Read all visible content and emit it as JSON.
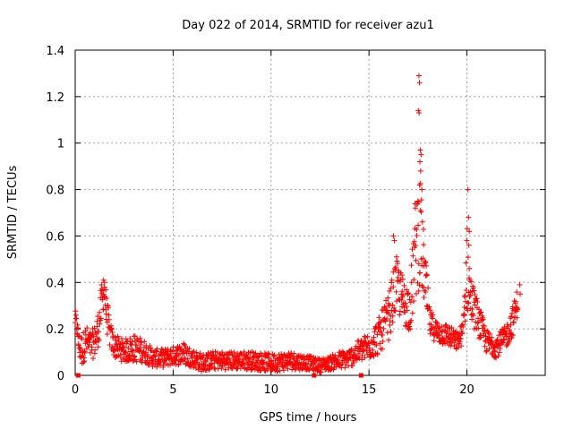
{
  "chart_data": {
    "type": "scatter",
    "title": "Day 022 of 2014, SRMTID for receiver azu1",
    "xlabel": "GPS time / hours",
    "ylabel": "SRMTID / TECUs",
    "xlim": [
      0,
      24
    ],
    "ylim": [
      0,
      1.4
    ],
    "xticks": [
      0,
      5,
      10,
      15,
      20
    ],
    "yticks": [
      0,
      0.2,
      0.4,
      0.6,
      0.8,
      1.0,
      1.2,
      1.4
    ],
    "xtick_labels": [
      "0",
      "5",
      "10",
      "15",
      "20"
    ],
    "ytick_labels": [
      "0",
      "0.2",
      "0.4",
      "0.6",
      "0.8",
      "1",
      "1.2",
      "1.4"
    ],
    "grid": true,
    "marker": "+",
    "series": [
      {
        "name": "SRMTID azu1",
        "color": "#ff0000",
        "profile": [
          [
            0.0,
            0.24,
            0.04
          ],
          [
            0.1,
            0.2,
            0.04
          ],
          [
            0.2,
            0.12,
            0.06
          ],
          [
            0.35,
            0.1,
            0.07
          ],
          [
            0.55,
            0.14,
            0.07
          ],
          [
            0.8,
            0.12,
            0.06
          ],
          [
            1.0,
            0.14,
            0.07
          ],
          [
            1.2,
            0.2,
            0.08
          ],
          [
            1.35,
            0.3,
            0.09
          ],
          [
            1.5,
            0.36,
            0.06
          ],
          [
            1.6,
            0.26,
            0.08
          ],
          [
            1.8,
            0.16,
            0.06
          ],
          [
            2.0,
            0.12,
            0.05
          ],
          [
            2.5,
            0.1,
            0.05
          ],
          [
            3.0,
            0.11,
            0.06
          ],
          [
            3.5,
            0.1,
            0.05
          ],
          [
            4.0,
            0.07,
            0.04
          ],
          [
            4.5,
            0.07,
            0.04
          ],
          [
            5.0,
            0.08,
            0.04
          ],
          [
            5.5,
            0.09,
            0.05
          ],
          [
            6.0,
            0.07,
            0.04
          ],
          [
            6.5,
            0.05,
            0.04
          ],
          [
            7.0,
            0.06,
            0.04
          ],
          [
            8.0,
            0.06,
            0.04
          ],
          [
            9.0,
            0.06,
            0.04
          ],
          [
            10.0,
            0.05,
            0.04
          ],
          [
            11.0,
            0.06,
            0.04
          ],
          [
            12.0,
            0.05,
            0.03
          ],
          [
            12.5,
            0.04,
            0.03
          ],
          [
            13.0,
            0.05,
            0.03
          ],
          [
            13.5,
            0.06,
            0.04
          ],
          [
            14.0,
            0.07,
            0.04
          ],
          [
            14.5,
            0.1,
            0.05
          ],
          [
            15.0,
            0.12,
            0.06
          ],
          [
            15.5,
            0.16,
            0.08
          ],
          [
            16.0,
            0.24,
            0.1
          ],
          [
            16.4,
            0.38,
            0.12
          ],
          [
            16.8,
            0.3,
            0.1
          ],
          [
            17.1,
            0.28,
            0.1
          ],
          [
            17.4,
            0.55,
            0.25
          ],
          [
            17.6,
            0.6,
            0.25
          ],
          [
            17.8,
            0.45,
            0.15
          ],
          [
            18.1,
            0.22,
            0.06
          ],
          [
            18.5,
            0.18,
            0.05
          ],
          [
            19.0,
            0.17,
            0.05
          ],
          [
            19.5,
            0.14,
            0.04
          ],
          [
            19.8,
            0.18,
            0.05
          ],
          [
            20.0,
            0.45,
            0.2
          ],
          [
            20.2,
            0.32,
            0.1
          ],
          [
            20.5,
            0.25,
            0.08
          ],
          [
            21.0,
            0.14,
            0.05
          ],
          [
            21.5,
            0.12,
            0.05
          ],
          [
            22.0,
            0.16,
            0.05
          ],
          [
            22.4,
            0.24,
            0.07
          ],
          [
            22.6,
            0.32,
            0.06
          ]
        ],
        "spikes": [
          [
            17.55,
            1.29
          ],
          [
            17.58,
            1.26
          ],
          [
            17.52,
            1.14
          ],
          [
            17.56,
            1.13
          ],
          [
            17.62,
            0.97
          ],
          [
            17.66,
            0.95
          ],
          [
            17.6,
            0.92
          ],
          [
            17.64,
            0.88
          ],
          [
            17.7,
            0.8
          ],
          [
            17.5,
            0.75
          ],
          [
            20.05,
            0.8
          ],
          [
            20.08,
            0.68
          ],
          [
            20.12,
            0.62
          ],
          [
            20.1,
            0.56
          ],
          [
            16.25,
            0.6
          ],
          [
            16.3,
            0.58
          ],
          [
            1.45,
            0.41
          ],
          [
            1.5,
            0.4
          ],
          [
            22.7,
            0.39
          ],
          [
            22.72,
            0.35
          ]
        ],
        "edge_markers": [
          0.15,
          12.2,
          14.6
        ]
      }
    ]
  }
}
